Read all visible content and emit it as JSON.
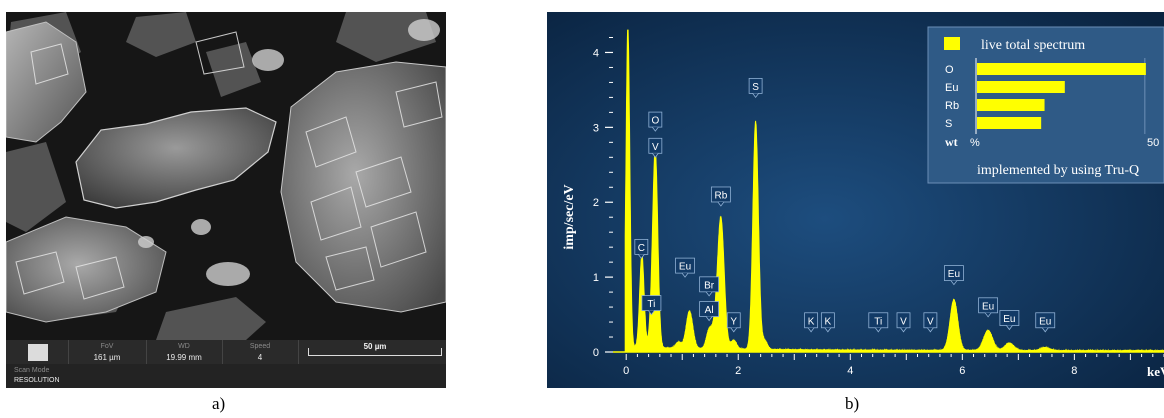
{
  "panel_a": {
    "caption": "a)",
    "info_bar": {
      "fov_label": "FoV",
      "fov_value": "161 µm",
      "wd_label": "WD",
      "wd_value": "19.99 mm",
      "speed_label": "Speed",
      "speed_value": "4",
      "scale_value": "50 µm",
      "scan_mode_label": "Scan Mode",
      "scan_mode_value": "RESOLUTION"
    }
  },
  "panel_b": {
    "caption": "b)",
    "legend": {
      "title": "live total spectrum",
      "axis_label": "wt",
      "axis_unit": "%",
      "axis_max_label": "50",
      "footnote": "implemented by using Tru-Q"
    },
    "colors": {
      "background": "#0d2a49",
      "spectrum": "#ffff00",
      "text": "#ffffff"
    }
  },
  "chart_data": [
    {
      "type": "line",
      "title": "",
      "xlabel": "keV",
      "ylabel": "imp/sec/eV",
      "xlim": [
        -0.2,
        9.6
      ],
      "ylim": [
        0,
        4.3
      ],
      "xticks": [
        0,
        2,
        4,
        6,
        8
      ],
      "yticks": [
        0,
        1,
        2,
        3,
        4
      ],
      "grid": false,
      "series": [
        {
          "peaks": [
            {
              "x": 0.03,
              "y": 4.3,
              "width": 0.035
            },
            {
              "x": 0.28,
              "y": 1.25,
              "width": 0.04
            },
            {
              "x": 0.45,
              "y": 0.3,
              "width": 0.04
            },
            {
              "x": 0.52,
              "y": 2.6,
              "width": 0.045
            },
            {
              "x": 0.93,
              "y": 0.08,
              "width": 0.05
            },
            {
              "x": 1.13,
              "y": 0.5,
              "width": 0.06
            },
            {
              "x": 1.48,
              "y": 0.25,
              "width": 0.05
            },
            {
              "x": 1.58,
              "y": 0.2,
              "width": 0.05
            },
            {
              "x": 1.69,
              "y": 1.75,
              "width": 0.06
            },
            {
              "x": 1.92,
              "y": 0.12,
              "width": 0.05
            },
            {
              "x": 2.31,
              "y": 3.05,
              "width": 0.05
            },
            {
              "x": 2.47,
              "y": 0.12,
              "width": 0.05
            },
            {
              "x": 5.85,
              "y": 0.68,
              "width": 0.07
            },
            {
              "x": 6.46,
              "y": 0.27,
              "width": 0.08
            },
            {
              "x": 6.84,
              "y": 0.1,
              "width": 0.08
            },
            {
              "x": 7.48,
              "y": 0.04,
              "width": 0.08
            }
          ]
        }
      ],
      "peak_labels": [
        {
          "text": "C",
          "x": 0.27,
          "y": 1.25
        },
        {
          "text": "O",
          "x": 0.52,
          "y": 2.95
        },
        {
          "text": "V",
          "x": 0.52,
          "y": 2.6
        },
        {
          "text": "Ti",
          "x": 0.45,
          "y": 0.5
        },
        {
          "text": "Eu",
          "x": 1.05,
          "y": 1.0
        },
        {
          "text": "Br",
          "x": 1.48,
          "y": 0.75
        },
        {
          "text": "Al",
          "x": 1.48,
          "y": 0.42
        },
        {
          "text": "Rb",
          "x": 1.69,
          "y": 1.95
        },
        {
          "text": "Y",
          "x": 1.92,
          "y": 0.27
        },
        {
          "text": "S",
          "x": 2.31,
          "y": 3.4
        },
        {
          "text": "K",
          "x": 3.3,
          "y": 0.27
        },
        {
          "text": "K",
          "x": 3.6,
          "y": 0.27
        },
        {
          "text": "Ti",
          "x": 4.5,
          "y": 0.27
        },
        {
          "text": "V",
          "x": 4.95,
          "y": 0.27
        },
        {
          "text": "V",
          "x": 5.43,
          "y": 0.27
        },
        {
          "text": "Eu",
          "x": 5.85,
          "y": 0.9
        },
        {
          "text": "Eu",
          "x": 6.46,
          "y": 0.47
        },
        {
          "text": "Eu",
          "x": 6.84,
          "y": 0.3
        },
        {
          "text": "Eu",
          "x": 7.48,
          "y": 0.27
        }
      ]
    },
    {
      "type": "bar",
      "title": "live total spectrum",
      "xlabel": "wt %",
      "ylabel": "",
      "categories": [
        "O",
        "Eu",
        "Rb",
        "S"
      ],
      "values": [
        50,
        26,
        20,
        19
      ],
      "xlim": [
        0,
        53
      ],
      "xticks": [
        50
      ]
    }
  ]
}
